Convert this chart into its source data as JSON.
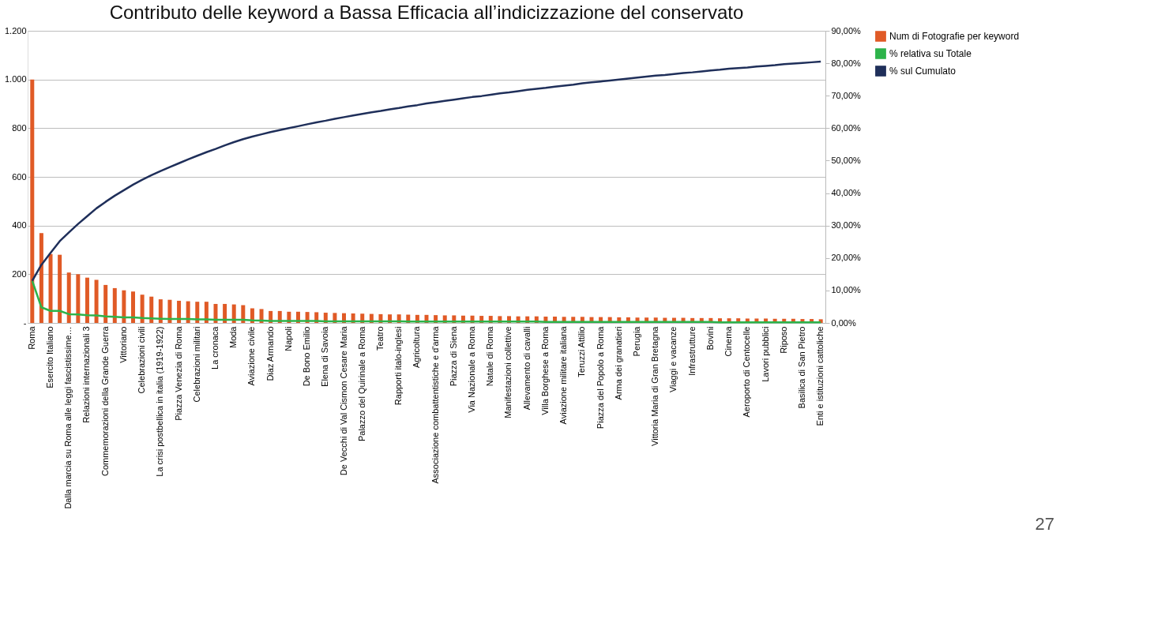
{
  "chart_data": {
    "type": "bar",
    "title": "Contributo delle keyword a Bassa Efficacia all’indicizzazione del conservato",
    "categories": [
      "Roma",
      null,
      "Esercito Italiano",
      null,
      "Dalla marcia su Roma alle leggi fascistissime…",
      null,
      "Relazioni internazionali 3",
      null,
      "Commemorazioni della Grande Guerra",
      null,
      "Vittoriano",
      null,
      "Celebrazioni civili",
      null,
      "La crisi postbellica in italia (1919-1922)",
      null,
      "Piazza Venezia di Roma",
      null,
      "Celebrazioni militari",
      null,
      "La cronaca",
      null,
      "Moda",
      null,
      "Aviazione civile",
      null,
      "Diaz Armando",
      null,
      "Napoli",
      null,
      "De Bono Emilio",
      null,
      "Elena di Savoia",
      null,
      "De Vecchi di Val Cismon Cesare Maria",
      null,
      "Palazzo del Quirinale a Roma",
      null,
      "Teatro",
      null,
      "Rapporti italo-inglesi",
      null,
      "Agricoltura",
      null,
      "Associazione combattentistiche e d'arma",
      null,
      "Piazza di Siena",
      null,
      "Via Nazionale a Roma",
      null,
      "Natale di Roma",
      null,
      "Manifestazioni collettive",
      null,
      "Allevamento di cavalli",
      null,
      "Villa Borghese a Roma",
      null,
      "Aviazione militare italiana",
      null,
      "Teruzzi Attilio",
      null,
      "Piazza del Popolo a Roma",
      null,
      "Arma dei granatieri",
      null,
      "Perugia",
      null,
      "Vittoria Maria di Gran Bretagna",
      null,
      "Viaggi e vacanze",
      null,
      "Infrastrutture",
      null,
      "Bovini",
      null,
      "Cinema",
      null,
      "Aeroporto di Centocelle",
      null,
      "Lavori pubblici",
      null,
      "Riposo",
      null,
      "Basilica di San Pietro",
      null,
      "Enti e istituzioni cattoliche"
    ],
    "series": [
      {
        "name": "Num di Fotografie per keyword",
        "color": "#e05a26",
        "values": [
          1000,
          369,
          283,
          280,
          207,
          200,
          186,
          177,
          156,
          143,
          134,
          129,
          116,
          108,
          97,
          95,
          91,
          89,
          87,
          87,
          78,
          78,
          76,
          73,
          60,
          57,
          49,
          49,
          46,
          46,
          45,
          44,
          42,
          41,
          40,
          39,
          38,
          37,
          36,
          35,
          35,
          34,
          33,
          33,
          32,
          31,
          31,
          30,
          30,
          29,
          29,
          28,
          28,
          27,
          27,
          27,
          26,
          26,
          25,
          25,
          25,
          24,
          24,
          24,
          23,
          23,
          22,
          22,
          22,
          21,
          21,
          21,
          20,
          20,
          20,
          19,
          19,
          19,
          18,
          18,
          18,
          17,
          17,
          17,
          16,
          16,
          15
        ]
      },
      {
        "name": "% relativa su Totale",
        "type": "line",
        "axis": "y2",
        "color": "#2db34a",
        "values": [
          13.0,
          4.8,
          3.7,
          3.7,
          2.7,
          2.6,
          2.4,
          2.3,
          2.0,
          1.9,
          1.7,
          1.7,
          1.5,
          1.4,
          1.3,
          1.2,
          1.2,
          1.2,
          1.1,
          1.1,
          1.0,
          1.0,
          1.0,
          1.0,
          0.8,
          0.7,
          0.6,
          0.6,
          0.6,
          0.6,
          0.6,
          0.6,
          0.5,
          0.5,
          0.5,
          0.5,
          0.5,
          0.5,
          0.5,
          0.5,
          0.5,
          0.4,
          0.4,
          0.4,
          0.4,
          0.4,
          0.4,
          0.4,
          0.4,
          0.4,
          0.4,
          0.4,
          0.4,
          0.4,
          0.4,
          0.4,
          0.3,
          0.3,
          0.3,
          0.3,
          0.3,
          0.3,
          0.3,
          0.3,
          0.3,
          0.3,
          0.3,
          0.3,
          0.3,
          0.3,
          0.3,
          0.3,
          0.3,
          0.3,
          0.3,
          0.2,
          0.2,
          0.2,
          0.2,
          0.2,
          0.2,
          0.2,
          0.2,
          0.2,
          0.2,
          0.2,
          0.2
        ]
      },
      {
        "name": "% sul Cumulato",
        "type": "line",
        "axis": "y2",
        "color": "#1f2f5a",
        "values": [
          13.0,
          17.9,
          21.6,
          25.2,
          27.9,
          30.5,
          32.9,
          35.3,
          37.3,
          39.2,
          40.9,
          42.6,
          44.1,
          45.5,
          46.8,
          48.0,
          49.2,
          50.4,
          51.5,
          52.6,
          53.6,
          54.7,
          55.7,
          56.6,
          57.4,
          58.1,
          58.8,
          59.4,
          60.0,
          60.6,
          61.2,
          61.8,
          62.3,
          62.9,
          63.4,
          63.9,
          64.4,
          64.9,
          65.3,
          65.8,
          66.2,
          66.7,
          67.1,
          67.6,
          68.0,
          68.4,
          68.8,
          69.2,
          69.6,
          69.9,
          70.3,
          70.7,
          71.0,
          71.4,
          71.8,
          72.1,
          72.4,
          72.8,
          73.1,
          73.4,
          73.8,
          74.1,
          74.4,
          74.7,
          75.0,
          75.3,
          75.6,
          75.9,
          76.2,
          76.4,
          76.7,
          77.0,
          77.2,
          77.5,
          77.8,
          78.0,
          78.3,
          78.5,
          78.7,
          79.0,
          79.2,
          79.4,
          79.7,
          79.9,
          80.1,
          80.3,
          80.5
        ]
      }
    ],
    "ylim": [
      0,
      1200
    ],
    "yticks": [
      {
        "value": 0,
        "label": "-"
      },
      200,
      400,
      600,
      800,
      {
        "value": 1000,
        "label": "1.000"
      },
      {
        "value": 1200,
        "label": "1.200"
      }
    ],
    "y2lim": [
      0,
      90
    ],
    "y2ticks": [
      {
        "value": 0,
        "label": "0,00%"
      },
      {
        "value": 10,
        "label": "10,00%"
      },
      {
        "value": 20,
        "label": "20,00%"
      },
      {
        "value": 30,
        "label": "30,00%"
      },
      {
        "value": 40,
        "label": "40,00%"
      },
      {
        "value": 50,
        "label": "50,00%"
      },
      {
        "value": 60,
        "label": "60,00%"
      },
      {
        "value": 70,
        "label": "70,00%"
      },
      {
        "value": 80,
        "label": "80,00%"
      },
      {
        "value": 90,
        "label": "90,00%"
      }
    ],
    "grid": "y",
    "legend": "right",
    "annotations": [
      "27"
    ]
  }
}
